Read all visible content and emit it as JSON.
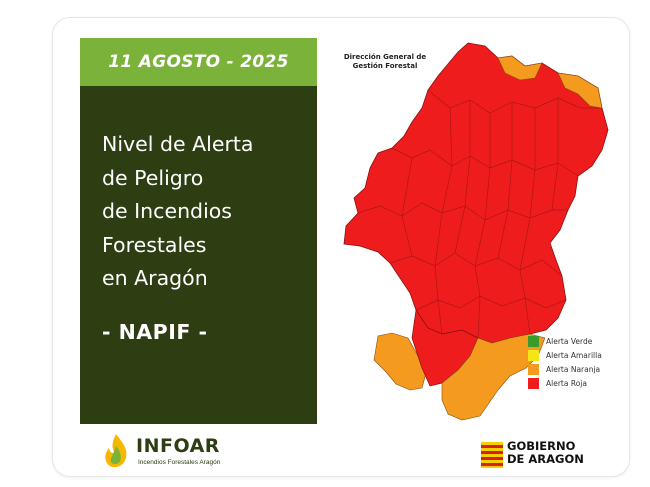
{
  "header": {
    "date": "11 AGOSTO - 2025"
  },
  "title": {
    "lines": [
      "Nivel de Alerta",
      "de Peligro",
      "de Incendios",
      "Forestales",
      "en Aragón"
    ],
    "subtitle": "- NAPIF -"
  },
  "map": {
    "source_label": "Dirección General de Gestión Forestal",
    "region_levels": {
      "north_pyrenees_edges": "Alerta Naranja",
      "central_aragon": "Alerta Roja",
      "southwest_teruel": "Alerta Naranja",
      "southeast_teruel": "Alerta Naranja"
    }
  },
  "legend": {
    "items": [
      {
        "label": "Alerta Verde",
        "color": "#3a9a2a"
      },
      {
        "label": "Alerta Amarilla",
        "color": "#f5e516"
      },
      {
        "label": "Alerta Naranja",
        "color": "#f39a1f"
      },
      {
        "label": "Alerta Roja",
        "color": "#ee1c1c"
      }
    ]
  },
  "colors": {
    "date_bar": "#7ab23a",
    "panel": "#2d3e13",
    "red": "#ee1c1c",
    "orange": "#f39a1f"
  },
  "footer": {
    "infoar_name": "INFOAR",
    "infoar_sub": "Incendios Forestales Aragón",
    "gov_line1": "GOBIERNO",
    "gov_line2": "DE ARAGON"
  }
}
